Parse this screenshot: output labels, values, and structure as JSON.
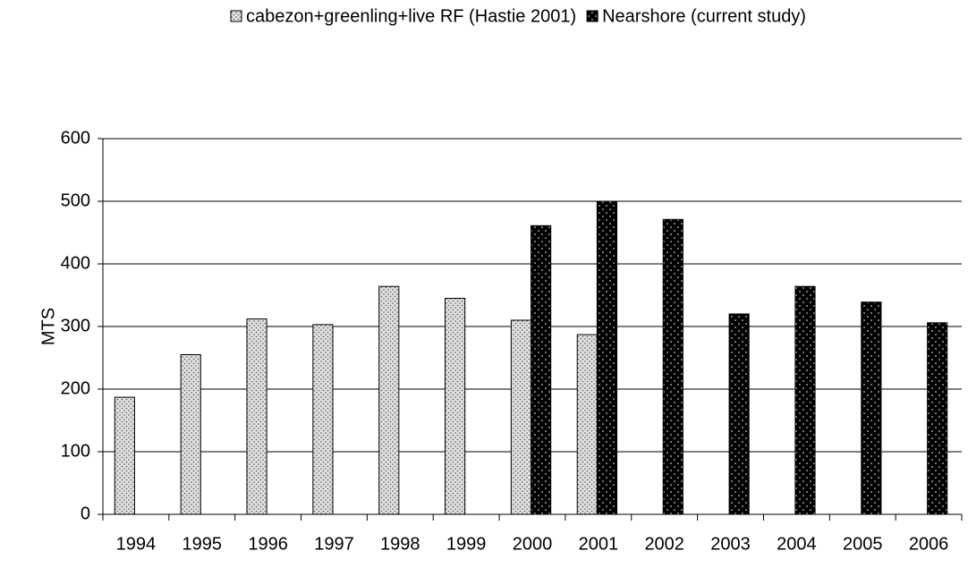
{
  "chart_data": {
    "type": "bar",
    "categories": [
      "1994",
      "1995",
      "1996",
      "1997",
      "1998",
      "1999",
      "2000",
      "2001",
      "2002",
      "2003",
      "2004",
      "2005",
      "2006"
    ],
    "series": [
      {
        "name": "cabezon+greenling+live RF (Hastie 2001)",
        "color": "#e0e0e0",
        "values": [
          187,
          255,
          312,
          303,
          364,
          345,
          310,
          287,
          null,
          null,
          null,
          null,
          null
        ]
      },
      {
        "name": "Nearshore (current study)",
        "color": "#000000",
        "values": [
          null,
          null,
          null,
          null,
          null,
          null,
          461,
          500,
          471,
          320,
          364,
          339,
          306
        ]
      }
    ],
    "y_label": "MTS",
    "ylim": [
      0,
      600
    ],
    "yticks": [
      0,
      100,
      200,
      300,
      400,
      500,
      600
    ],
    "grid": true,
    "legend": "top"
  }
}
